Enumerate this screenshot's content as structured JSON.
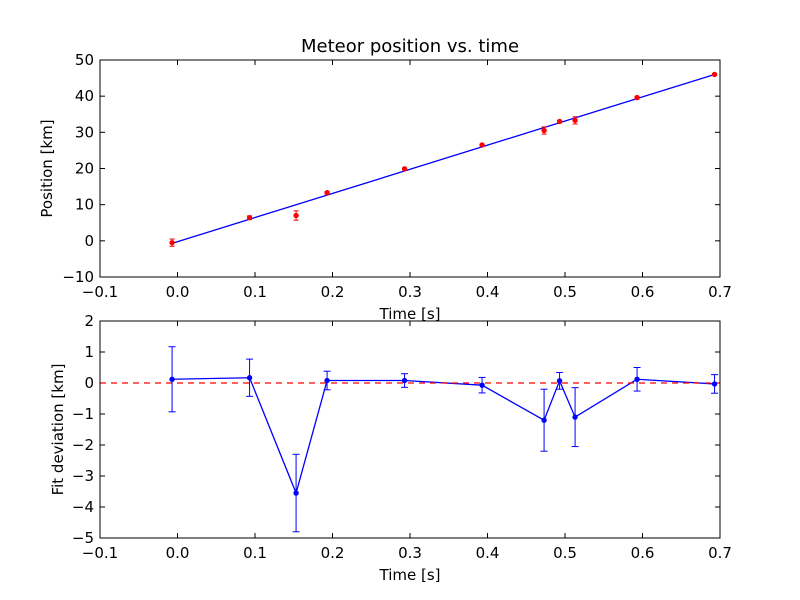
{
  "chart_data": [
    {
      "type": "scatter",
      "title": "Meteor position vs. time",
      "xlabel": "Time [s]",
      "ylabel": "Position [km]",
      "xlim": [
        -0.1,
        0.7
      ],
      "ylim": [
        -10,
        50
      ],
      "xticks": [
        -0.1,
        0.0,
        0.1,
        0.2,
        0.3,
        0.4,
        0.5,
        0.6,
        0.7
      ],
      "xtick_labels": [
        "−0.1",
        "0.0",
        "0.1",
        "0.2",
        "0.3",
        "0.4",
        "0.5",
        "0.6",
        "0.7"
      ],
      "yticks": [
        -10,
        0,
        10,
        20,
        30,
        40,
        50
      ],
      "ytick_labels": [
        "−10",
        "0",
        "10",
        "20",
        "30",
        "40",
        "50"
      ],
      "grid": false,
      "series": [
        {
          "kind": "errorbar-points",
          "color": "#ff0000",
          "x": [
            -0.007,
            0.093,
            0.153,
            0.193,
            0.293,
            0.393,
            0.473,
            0.493,
            0.513,
            0.593,
            0.693
          ],
          "y": [
            -0.5,
            6.4,
            7.0,
            13.3,
            19.9,
            26.5,
            30.5,
            33.0,
            33.3,
            39.6,
            46.0
          ],
          "err": [
            1.0,
            0.5,
            1.3,
            0.3,
            0.2,
            0.2,
            1.0,
            0.3,
            1.0,
            0.35,
            0.25
          ]
        },
        {
          "kind": "fit-line",
          "color": "#0000ff",
          "x": [
            -0.007,
            0.693
          ],
          "y": [
            -0.7,
            46.0
          ]
        }
      ]
    },
    {
      "type": "line",
      "title": "",
      "xlabel": "Time [s]",
      "ylabel": "Fit deviation [km]",
      "xlim": [
        -0.1,
        0.7
      ],
      "ylim": [
        -5,
        2
      ],
      "xticks": [
        -0.1,
        0.0,
        0.1,
        0.2,
        0.3,
        0.4,
        0.5,
        0.6,
        0.7
      ],
      "xtick_labels": [
        "−0.1",
        "0.0",
        "0.1",
        "0.2",
        "0.3",
        "0.4",
        "0.5",
        "0.6",
        "0.7"
      ],
      "yticks": [
        -5,
        -4,
        -3,
        -2,
        -1,
        0,
        1,
        2
      ],
      "ytick_labels": [
        "−5",
        "−4",
        "−3",
        "−2",
        "−1",
        "0",
        "1",
        "2"
      ],
      "grid": false,
      "series": [
        {
          "kind": "errorbar-line",
          "color": "#0000ff",
          "x": [
            -0.007,
            0.093,
            0.153,
            0.193,
            0.293,
            0.393,
            0.473,
            0.493,
            0.513,
            0.593,
            0.693
          ],
          "y": [
            0.12,
            0.17,
            -3.55,
            0.08,
            0.08,
            -0.07,
            -1.2,
            0.07,
            -1.1,
            0.12,
            -0.03
          ],
          "err": [
            1.05,
            0.6,
            1.25,
            0.3,
            0.22,
            0.25,
            1.0,
            0.27,
            0.95,
            0.38,
            0.3
          ]
        },
        {
          "kind": "reference-line",
          "color": "#ff0000",
          "style": "dashed",
          "y": 0
        }
      ]
    }
  ]
}
